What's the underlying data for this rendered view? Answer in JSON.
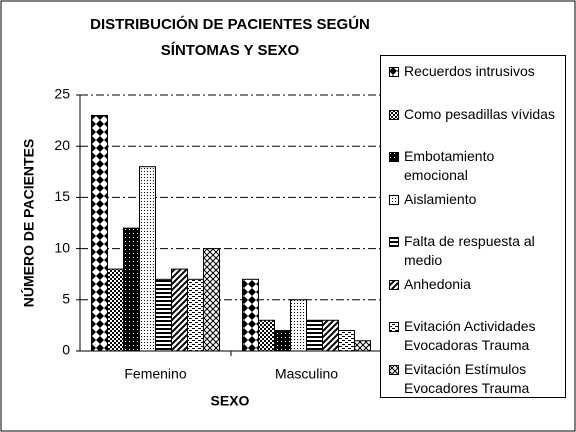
{
  "chart_data": {
    "type": "bar",
    "title": "DISTRIBUCIÓN DE PACIENTES SEGÚN SÍNTOMAS Y SEXO",
    "x_label": "SEXO",
    "y_label": "NÚMERO DE PACIENTES",
    "categories": [
      "Femenino",
      "Masculino"
    ],
    "series": [
      {
        "name": "Recuerdos intrusivos",
        "pattern": "p-diamond",
        "values": [
          23,
          7
        ]
      },
      {
        "name": "Como pesadillas vívidas",
        "pattern": "p-check",
        "values": [
          8,
          3
        ]
      },
      {
        "name": "Embotamiento emocional",
        "pattern": "p-dense",
        "values": [
          12,
          2
        ]
      },
      {
        "name": "Aislamiento",
        "pattern": "p-dots",
        "values": [
          18,
          5
        ]
      },
      {
        "name": "Falta de respuesta al medio",
        "pattern": "p-hlines",
        "values": [
          7,
          3
        ]
      },
      {
        "name": "Anhedonia",
        "pattern": "p-diag",
        "values": [
          8,
          3
        ]
      },
      {
        "name": "Evitación Actividades Evocadoras Trauma",
        "pattern": "p-dash",
        "values": [
          7,
          2
        ]
      },
      {
        "name": "Evitación Estímulos Evocadores Trauma",
        "pattern": "p-cross",
        "values": [
          10,
          1
        ]
      }
    ],
    "ylim": [
      0,
      25
    ],
    "yticks": [
      0,
      5,
      10,
      15,
      20,
      25
    ],
    "grid": true
  }
}
